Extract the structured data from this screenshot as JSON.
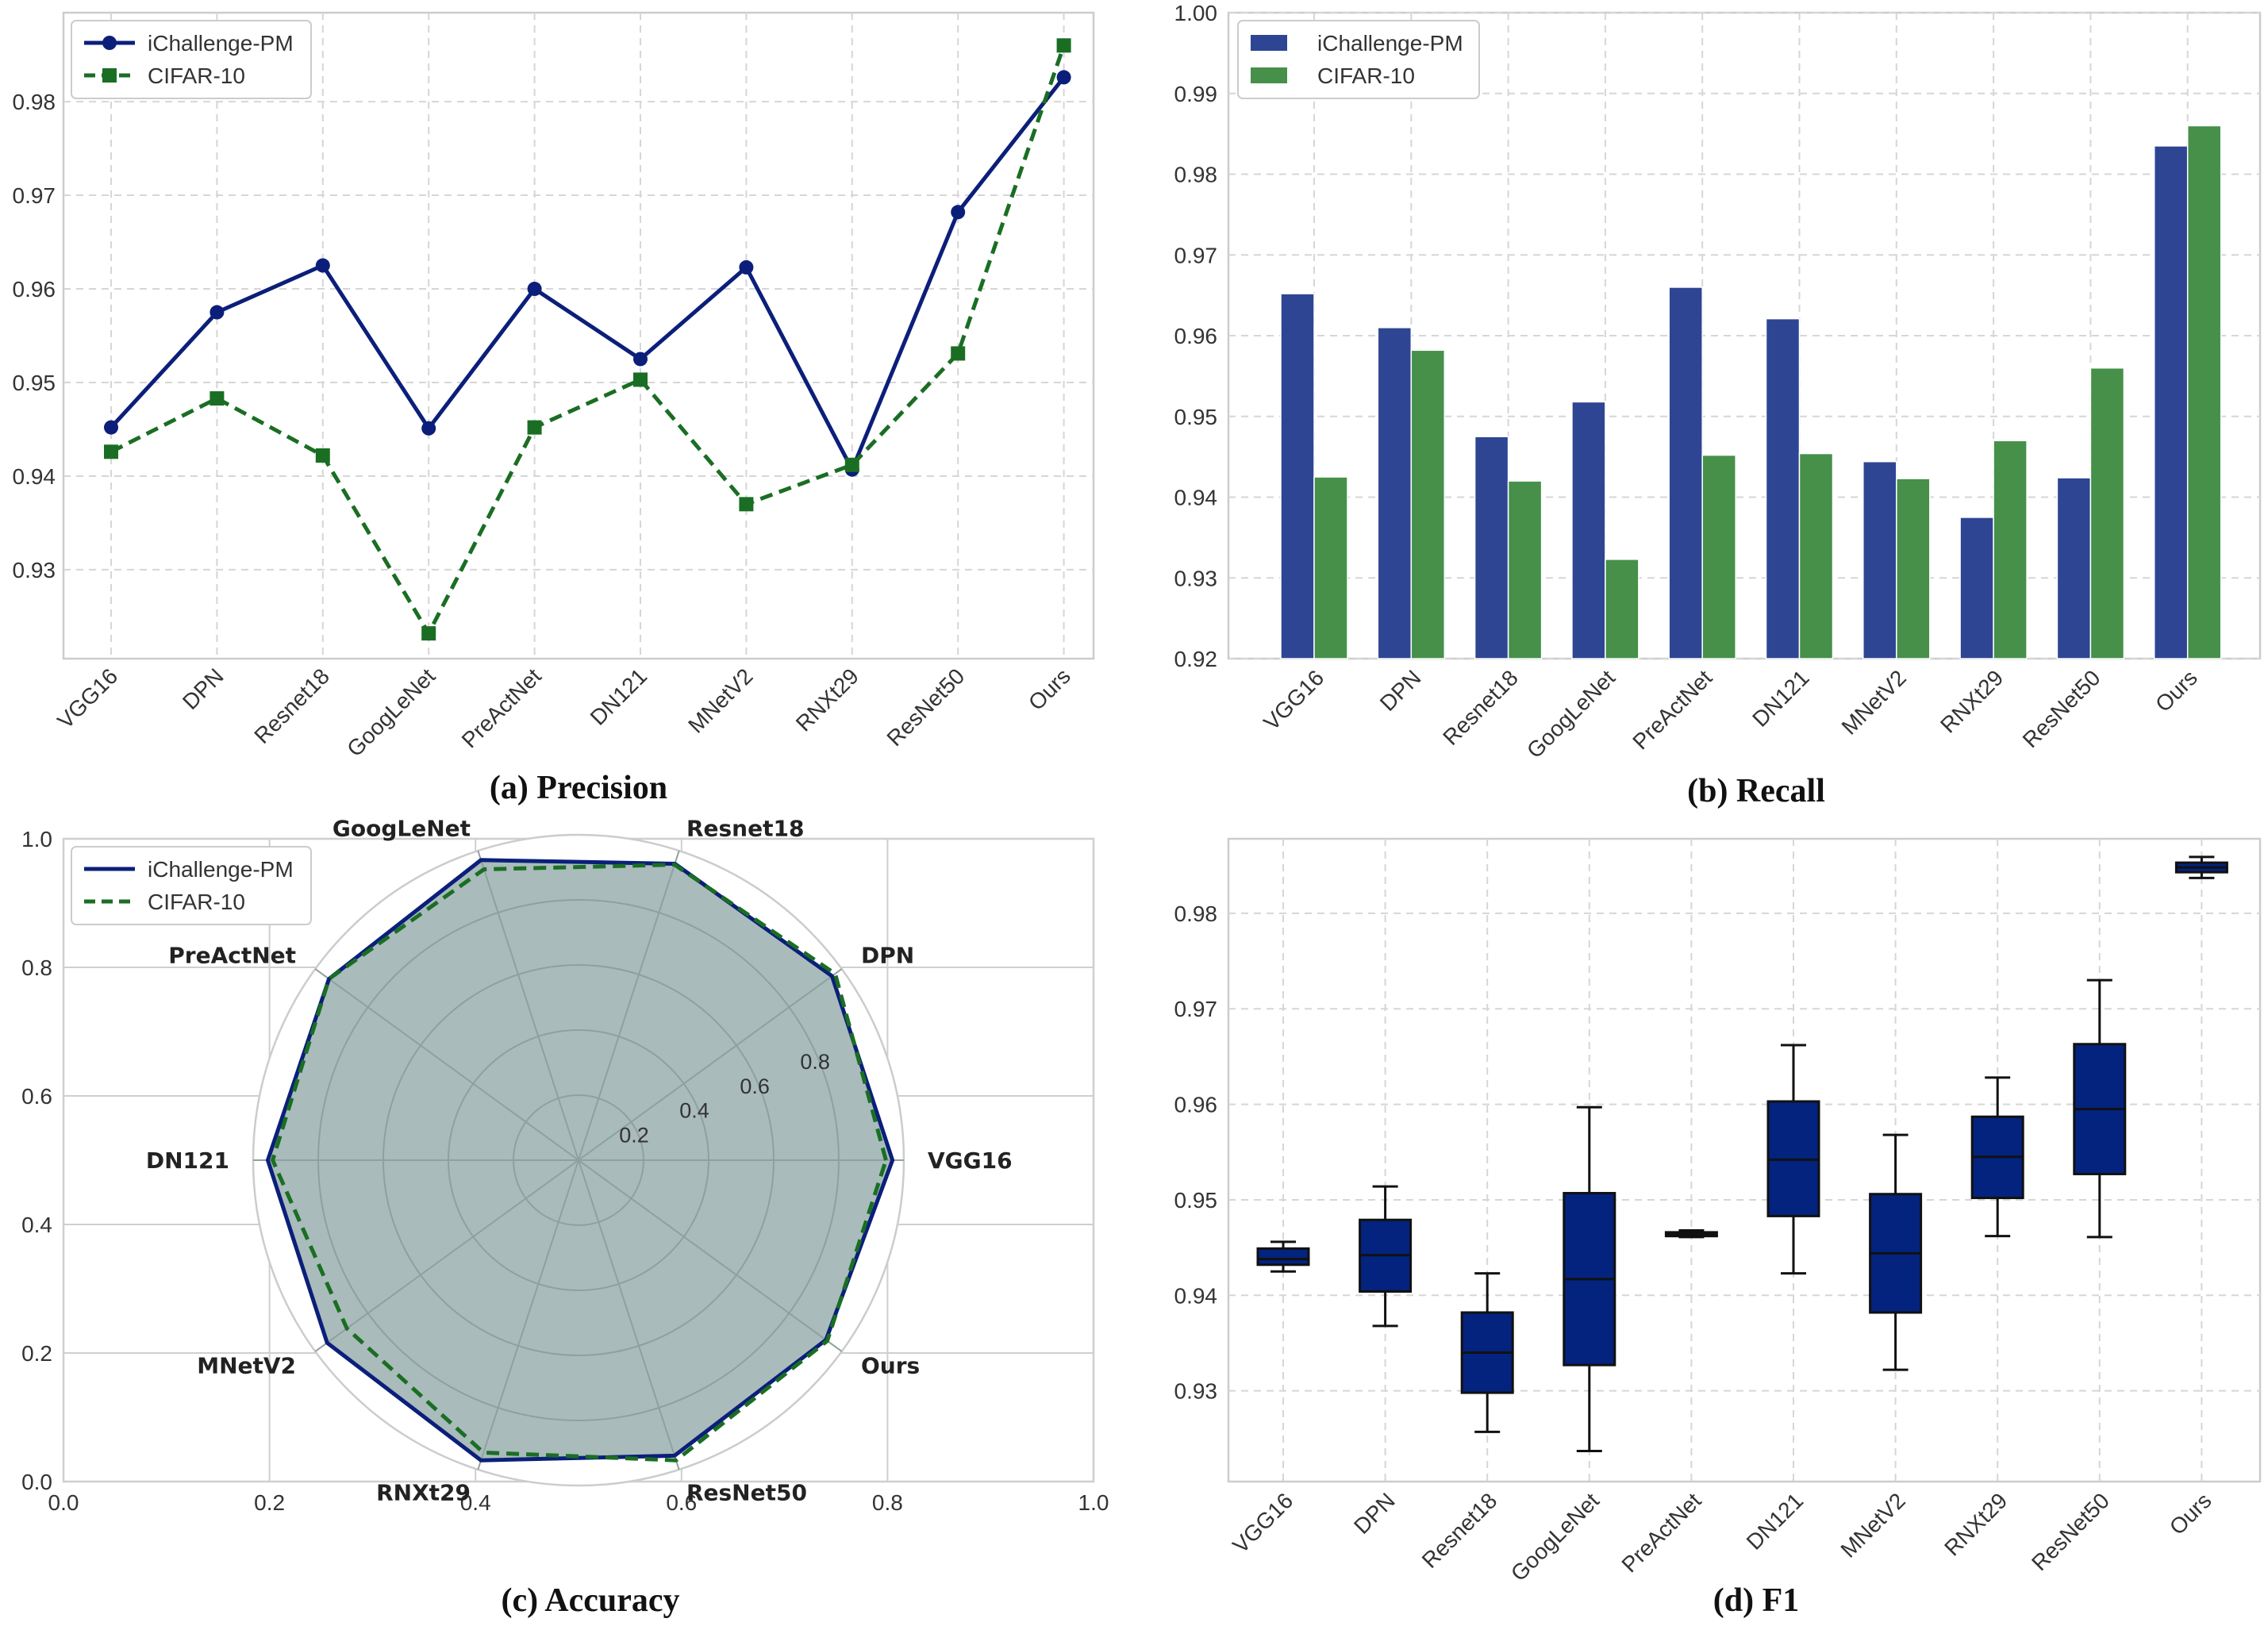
{
  "colors": {
    "blue": "#0b1f7a",
    "green": "#1a6e23",
    "bar_blue": "#2e4593",
    "bar_green": "#46904a",
    "box": "#03237f",
    "radar_fill": "#a9bbbb"
  },
  "chart_data": [
    {
      "id": "a",
      "type": "line",
      "title": "(a)  Precision",
      "categories": [
        "VGG16",
        "DPN",
        "Resnet18",
        "GoogLeNet",
        "PreActNet",
        "DN121",
        "MNetV2",
        "RNXt29",
        "ResNet50",
        "Ours"
      ],
      "series": [
        {
          "name": "iChallenge-PM",
          "values": [
            0.9452,
            0.9575,
            0.9625,
            0.9451,
            0.96,
            0.9525,
            0.9623,
            0.9407,
            0.9682,
            0.9826
          ]
        },
        {
          "name": "CIFAR-10",
          "values": [
            0.9426,
            0.9483,
            0.9422,
            0.9232,
            0.9452,
            0.9503,
            0.937,
            0.9412,
            0.9531,
            0.986
          ]
        }
      ],
      "yticks": [
        "0.93",
        "0.94",
        "0.95",
        "0.96",
        "0.97",
        "0.98"
      ],
      "ylim": [
        0.9205,
        0.9895
      ],
      "grid": true,
      "legend": "top-left"
    },
    {
      "id": "b",
      "type": "bar",
      "title": "(b)  Recall",
      "categories": [
        "VGG16",
        "DPN",
        "Resnet18",
        "GoogLeNet",
        "PreActNet",
        "DN121",
        "MNetV2",
        "RNXt29",
        "ResNet50",
        "Ours"
      ],
      "series": [
        {
          "name": "iChallenge-PM",
          "values": [
            0.9652,
            0.961,
            0.9475,
            0.9518,
            0.966,
            0.9621,
            0.9444,
            0.9375,
            0.9424,
            0.9835
          ]
        },
        {
          "name": "CIFAR-10",
          "values": [
            0.9425,
            0.9582,
            0.942,
            0.9323,
            0.9452,
            0.9454,
            0.9423,
            0.947,
            0.956,
            0.986
          ]
        }
      ],
      "yticks": [
        "0.92",
        "0.93",
        "0.94",
        "0.95",
        "0.96",
        "0.97",
        "0.98",
        "0.99",
        "1.00"
      ],
      "ylim": [
        0.92,
        1.0
      ],
      "grid": true,
      "legend": "top-left"
    },
    {
      "id": "c",
      "type": "radar",
      "title": "(c)  Accuracy",
      "categories": [
        "VGG16",
        "DPN",
        "Resnet18",
        "GoogLeNet",
        "PreActNet",
        "DN121",
        "MNetV2",
        "RNXt29",
        "ResNet50",
        "Ours"
      ],
      "series": [
        {
          "name": "iChallenge-PM",
          "values": [
            0.965,
            0.963,
            0.958,
            0.97,
            0.948,
            0.955,
            0.955,
            0.97,
            0.955,
            0.94
          ]
        },
        {
          "name": "CIFAR-10",
          "values": [
            0.945,
            0.975,
            0.955,
            0.94,
            0.948,
            0.94,
            0.88,
            0.945,
            0.97,
            0.945
          ]
        }
      ],
      "r_ticks": [
        "0.2",
        "0.4",
        "0.6",
        "0.8"
      ],
      "rlim": [
        0,
        1.0
      ],
      "frame_xticks": [
        "0.0",
        "0.2",
        "0.4",
        "0.6",
        "0.8",
        "1.0"
      ],
      "frame_yticks": [
        "0.0",
        "0.2",
        "0.4",
        "0.6",
        "0.8",
        "1.0"
      ],
      "legend": "top-left"
    },
    {
      "id": "d",
      "type": "box",
      "title": "(d)  F1",
      "categories": [
        "VGG16",
        "DPN",
        "Resnet18",
        "GoogLeNet",
        "PreActNet",
        "DN121",
        "MNetV2",
        "RNXt29",
        "ResNet50",
        "Ours"
      ],
      "boxes": [
        {
          "min": 0.9425,
          "q1": 0.9432,
          "median": 0.9438,
          "q3": 0.9449,
          "max": 0.9456
        },
        {
          "min": 0.9368,
          "q1": 0.9404,
          "median": 0.9442,
          "q3": 0.9479,
          "max": 0.9514
        },
        {
          "min": 0.9257,
          "q1": 0.9298,
          "median": 0.934,
          "q3": 0.9382,
          "max": 0.9423
        },
        {
          "min": 0.9237,
          "q1": 0.9327,
          "median": 0.9417,
          "q3": 0.9507,
          "max": 0.9597
        },
        {
          "min": 0.9461,
          "q1": 0.9462,
          "median": 0.9464,
          "q3": 0.9466,
          "max": 0.9468
        },
        {
          "min": 0.9423,
          "q1": 0.9483,
          "median": 0.9542,
          "q3": 0.9603,
          "max": 0.9662
        },
        {
          "min": 0.9322,
          "q1": 0.9382,
          "median": 0.9444,
          "q3": 0.9506,
          "max": 0.9568
        },
        {
          "min": 0.9462,
          "q1": 0.9502,
          "median": 0.9545,
          "q3": 0.9587,
          "max": 0.9628
        },
        {
          "min": 0.9461,
          "q1": 0.9527,
          "median": 0.9595,
          "q3": 0.9663,
          "max": 0.973
        },
        {
          "min": 0.9837,
          "q1": 0.9843,
          "median": 0.9848,
          "q3": 0.9853,
          "max": 0.9859
        }
      ],
      "yticks": [
        "0.93",
        "0.94",
        "0.95",
        "0.96",
        "0.97",
        "0.98"
      ],
      "ylim": [
        0.9205,
        0.9878
      ],
      "grid": true
    }
  ]
}
